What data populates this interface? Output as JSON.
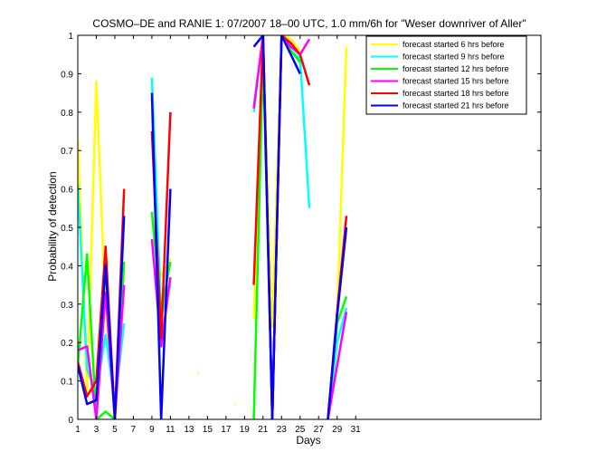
{
  "chart_data": {
    "type": "line",
    "title": "COSMO–DE and RANIE 1: 07/2007 18–00 UTC, 1.0 mm/6h for \"Weser downriver of Aller\"",
    "xlabel": "Days",
    "ylabel": "Probability of detection",
    "xlim": [
      1,
      51
    ],
    "ylim": [
      0,
      1
    ],
    "x_ticks": [
      1,
      3,
      5,
      7,
      9,
      11,
      13,
      15,
      17,
      19,
      21,
      23,
      25,
      27,
      29,
      31
    ],
    "y_ticks": [
      0,
      0.1,
      0.2,
      0.3,
      0.4,
      0.5,
      0.6,
      0.7,
      0.8,
      0.9,
      1
    ],
    "y_tick_labels": [
      "0",
      "0.1",
      "0.2",
      "0.3",
      "0.4",
      "0.5",
      "0.6",
      "0.7",
      "0.8",
      "0.9",
      "1"
    ],
    "legend_position": "top-right",
    "series": [
      {
        "name": "forecast started 6 hrs before",
        "color": "#ffff00",
        "values": [
          [
            1,
            0.73
          ],
          [
            2,
            0.07
          ],
          [
            3,
            0.88
          ],
          [
            4,
            0.28
          ],
          [
            5,
            0.0
          ],
          [
            6,
            0.41
          ],
          [
            null,
            null
          ],
          [
            9,
            0.52
          ],
          [
            10,
            0.37
          ],
          [
            11,
            0.42
          ],
          [
            null,
            null
          ],
          [
            14,
            0.12
          ],
          [
            null,
            null
          ],
          [
            18,
            0.04
          ],
          [
            null,
            null
          ],
          [
            20,
            0.26
          ],
          [
            21,
            1.0
          ],
          [
            22,
            0.24
          ],
          [
            23,
            1.0
          ],
          [
            24,
            0.99
          ],
          [
            25,
            0.96
          ],
          [
            null,
            null
          ],
          [
            28,
            0.0
          ],
          [
            29,
            0.27
          ],
          [
            30,
            0.97
          ]
        ]
      },
      {
        "name": "forecast started 9 hrs before",
        "color": "#00ffff",
        "values": [
          [
            1,
            0.61
          ],
          [
            2,
            0.13
          ],
          [
            3,
            0.07
          ],
          [
            4,
            0.22
          ],
          [
            5,
            0.04
          ],
          [
            6,
            0.25
          ],
          [
            null,
            null
          ],
          [
            9,
            0.89
          ],
          [
            10,
            0.27
          ],
          [
            11,
            0.35
          ],
          [
            null,
            null
          ],
          [
            20,
            0.8
          ],
          [
            21,
            1.0
          ],
          [
            22,
            0.0
          ],
          [
            23,
            1.0
          ],
          [
            24,
            0.96
          ],
          [
            25,
            0.94
          ],
          [
            26,
            0.55
          ],
          [
            null,
            null
          ],
          [
            28,
            0.0
          ],
          [
            29,
            0.2
          ],
          [
            30,
            0.29
          ]
        ]
      },
      {
        "name": "forecast started 12 hrs before",
        "color": "#00ff00",
        "values": [
          [
            1,
            0.14
          ],
          [
            2,
            0.43
          ],
          [
            3,
            0.0
          ],
          [
            4,
            0.02
          ],
          [
            5,
            0.0
          ],
          [
            6,
            0.41
          ],
          [
            null,
            null
          ],
          [
            9,
            0.54
          ],
          [
            10,
            0.28
          ],
          [
            11,
            0.41
          ],
          [
            null,
            null
          ],
          [
            20,
            0.0
          ],
          [
            21,
            0.95
          ],
          [
            22,
            0.0
          ],
          [
            23,
            1.0
          ],
          [
            24,
            0.96
          ],
          [
            25,
            0.93
          ],
          [
            null,
            null
          ],
          [
            28,
            0.0
          ],
          [
            29,
            0.25
          ],
          [
            30,
            0.32
          ]
        ]
      },
      {
        "name": "forecast started 15 hrs before",
        "color": "#ff00ff",
        "values": [
          [
            1,
            0.18
          ],
          [
            2,
            0.19
          ],
          [
            3,
            0.0
          ],
          [
            4,
            0.33
          ],
          [
            5,
            0.0
          ],
          [
            6,
            0.35
          ],
          [
            null,
            null
          ],
          [
            9,
            0.47
          ],
          [
            10,
            0.19
          ],
          [
            11,
            0.37
          ],
          [
            null,
            null
          ],
          [
            20,
            0.81
          ],
          [
            21,
            1.0
          ],
          [
            22,
            0.0
          ],
          [
            23,
            1.0
          ],
          [
            24,
            0.97
          ],
          [
            25,
            0.95
          ],
          [
            26,
            0.99
          ],
          [
            null,
            null
          ],
          [
            28,
            0.0
          ],
          [
            29,
            0.14
          ],
          [
            30,
            0.28
          ]
        ]
      },
      {
        "name": "forecast started 18 hrs before",
        "color": "#ff0000",
        "values": [
          [
            1,
            0.15
          ],
          [
            2,
            0.06
          ],
          [
            3,
            0.1
          ],
          [
            4,
            0.45
          ],
          [
            5,
            0.0
          ],
          [
            6,
            0.6
          ],
          [
            null,
            null
          ],
          [
            9,
            0.75
          ],
          [
            10,
            0.21
          ],
          [
            11,
            0.8
          ],
          [
            null,
            null
          ],
          [
            20,
            0.35
          ],
          [
            21,
            1.0
          ],
          [
            22,
            0.0
          ],
          [
            23,
            1.0
          ],
          [
            24,
            0.98
          ],
          [
            25,
            0.95
          ],
          [
            26,
            0.87
          ],
          [
            null,
            null
          ],
          [
            28,
            0.0
          ],
          [
            29,
            0.28
          ],
          [
            30,
            0.53
          ]
        ]
      },
      {
        "name": "forecast started 21 hrs before",
        "color": "#0000ff",
        "values": [
          [
            1,
            0.14
          ],
          [
            2,
            0.04
          ],
          [
            3,
            0.05
          ],
          [
            4,
            0.4
          ],
          [
            5,
            0.0
          ],
          [
            6,
            0.53
          ],
          [
            null,
            null
          ],
          [
            9,
            0.85
          ],
          [
            10,
            0.0
          ],
          [
            11,
            0.6
          ],
          [
            null,
            null
          ],
          [
            20,
            0.97
          ],
          [
            21,
            1.0
          ],
          [
            22,
            0.0
          ],
          [
            23,
            1.0
          ],
          [
            24,
            0.95
          ],
          [
            25,
            0.9
          ],
          [
            null,
            null
          ],
          [
            28,
            0.0
          ],
          [
            29,
            0.27
          ],
          [
            30,
            0.5
          ]
        ]
      }
    ]
  }
}
